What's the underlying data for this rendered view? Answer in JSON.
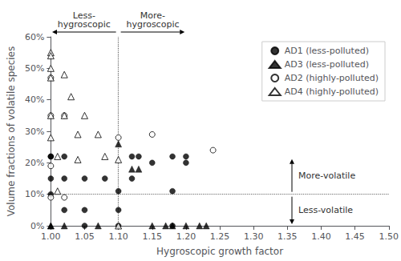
{
  "chart_data": {
    "type": "scatter",
    "xlabel": "Hygroscopic growth factor",
    "ylabel": "Volume fractions of volatile species",
    "xlim": [
      1.0,
      1.5
    ],
    "ylim": [
      0.0,
      0.6
    ],
    "xticks": [
      {
        "value": 1.0,
        "label": "1.00"
      },
      {
        "value": 1.05,
        "label": "1.05"
      },
      {
        "value": 1.1,
        "label": "1.10"
      },
      {
        "value": 1.15,
        "label": "1.15"
      },
      {
        "value": 1.2,
        "label": "1.20"
      },
      {
        "value": 1.25,
        "label": "1.25"
      },
      {
        "value": 1.3,
        "label": "1.30"
      },
      {
        "value": 1.35,
        "label": "1.35"
      },
      {
        "value": 1.4,
        "label": "1.40"
      },
      {
        "value": 1.45,
        "label": "1.45"
      },
      {
        "value": 1.5,
        "label": "1.50"
      }
    ],
    "yticks": [
      {
        "value": 0.0,
        "label": "0%"
      },
      {
        "value": 0.1,
        "label": "10%"
      },
      {
        "value": 0.2,
        "label": "20%"
      },
      {
        "value": 0.3,
        "label": "30%"
      },
      {
        "value": 0.4,
        "label": "40%"
      },
      {
        "value": 0.5,
        "label": "50%"
      },
      {
        "value": 0.6,
        "label": "60%"
      }
    ],
    "grid": false,
    "legend": "upper right",
    "vline": 1.1,
    "hline": 0.1,
    "annotations": [
      "Less-\nhygroscopic",
      "More-\nhygroscopic",
      "More-volatile",
      "Less-volatile"
    ],
    "series": [
      {
        "name": "AD1 (less-polluted)",
        "marker": "circle",
        "color": "#000000",
        "x": [
          1.0,
          1.0,
          1.0,
          1.0,
          1.02,
          1.02,
          1.02,
          1.05,
          1.05,
          1.05,
          1.08,
          1.1,
          1.1,
          1.1,
          1.12,
          1.12,
          1.13,
          1.15,
          1.18,
          1.18,
          1.18,
          1.2,
          1.2
        ],
        "values": [
          0.15,
          0.22,
          0.22,
          0.1,
          0.15,
          0.22,
          0.05,
          0.15,
          0.05,
          0.0,
          0.15,
          0.11,
          0.05,
          0.0,
          0.22,
          0.15,
          0.22,
          0.2,
          0.22,
          0.11,
          0.0,
          0.22,
          0.2
        ]
      },
      {
        "name": "AD3 (less-polluted)",
        "marker": "triangle",
        "color": "#000000",
        "x": [
          1.0,
          1.0,
          1.02,
          1.07,
          1.1,
          1.12,
          1.13,
          1.15,
          1.17,
          1.18,
          1.2,
          1.22,
          1.23
        ],
        "values": [
          0.0,
          0.0,
          0.0,
          0.0,
          0.26,
          0.18,
          0.18,
          0.0,
          0.0,
          0.0,
          0.0,
          0.0,
          0.0
        ]
      },
      {
        "name": "AD2 (highly-polluted)",
        "marker": "open_circle",
        "color": "#000000",
        "x": [
          1.0,
          1.0,
          1.0,
          1.0,
          1.02,
          1.02,
          1.1,
          1.15,
          1.24
        ],
        "values": [
          0.47,
          0.35,
          0.19,
          0.09,
          0.35,
          0.09,
          0.28,
          0.29,
          0.24
        ]
      },
      {
        "name": "AD4 (highly-polluted)",
        "marker": "open_triangle",
        "color": "#000000",
        "x": [
          1.0,
          1.0,
          1.0,
          1.0,
          1.0,
          1.0,
          1.01,
          1.01,
          1.02,
          1.02,
          1.03,
          1.04,
          1.04,
          1.05,
          1.07,
          1.08,
          1.1,
          1.1
        ],
        "values": [
          0.55,
          0.54,
          0.5,
          0.47,
          0.35,
          0.28,
          0.22,
          0.11,
          0.48,
          0.35,
          0.41,
          0.29,
          0.21,
          0.35,
          0.29,
          0.22,
          0.21,
          0.0
        ]
      }
    ]
  }
}
